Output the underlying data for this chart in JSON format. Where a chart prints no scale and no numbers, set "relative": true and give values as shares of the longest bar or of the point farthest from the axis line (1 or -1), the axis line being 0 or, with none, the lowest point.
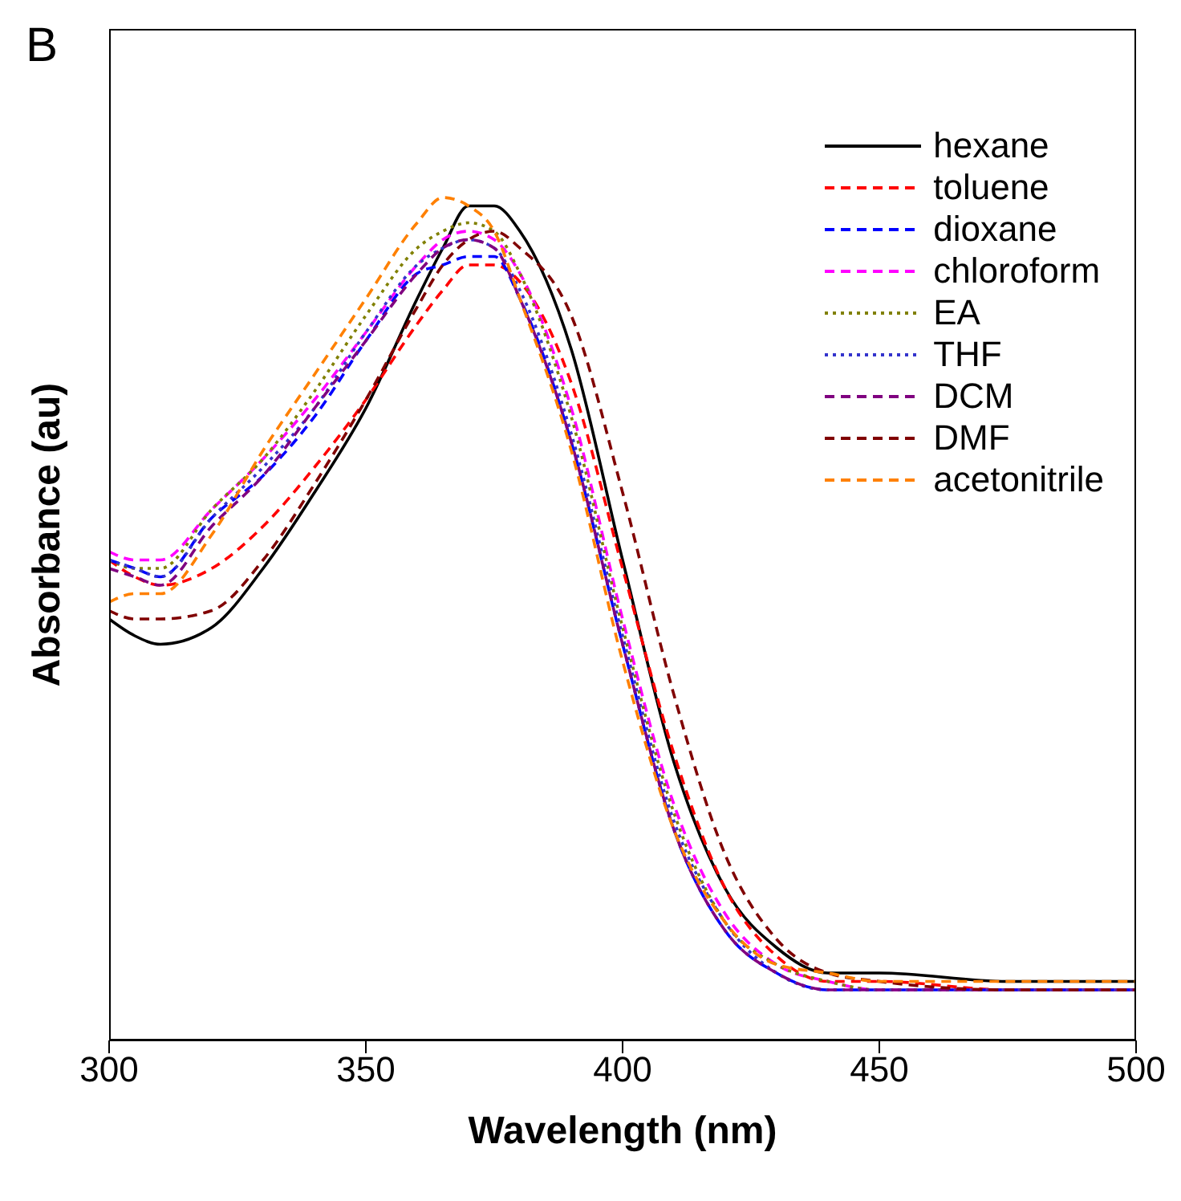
{
  "chart_data": {
    "type": "line",
    "relative": true,
    "xlabel": "Wavelength (nm)",
    "ylabel": "Absorbance (au)",
    "annotations": [
      "B"
    ],
    "x": [
      300,
      305,
      310,
      320,
      330,
      340,
      350,
      360,
      365,
      370,
      375,
      380,
      390,
      400,
      410,
      420,
      430,
      440,
      450,
      475,
      500
    ],
    "xlim": [
      300,
      500
    ],
    "xticks": [
      300,
      350,
      400,
      450,
      500
    ],
    "grid": false,
    "legend": "top right",
    "marker": "none",
    "series": [
      {
        "name": "hexane",
        "color": "#000000",
        "line_style": "solid",
        "values": [
          0.5,
          0.48,
          0.47,
          0.49,
          0.56,
          0.65,
          0.75,
          0.88,
          0.94,
          0.99,
          0.99,
          0.96,
          0.82,
          0.57,
          0.33,
          0.18,
          0.11,
          0.08,
          0.08,
          0.07,
          0.07
        ]
      },
      {
        "name": "toluene",
        "color": "#ff0000",
        "line_style": "dashed",
        "values": [
          0.57,
          0.55,
          0.54,
          0.56,
          0.61,
          0.68,
          0.76,
          0.85,
          0.89,
          0.92,
          0.92,
          0.9,
          0.78,
          0.56,
          0.34,
          0.18,
          0.1,
          0.07,
          0.07,
          0.06,
          0.06
        ]
      },
      {
        "name": "dioxane",
        "color": "#0000ff",
        "line_style": "dashed",
        "values": [
          0.57,
          0.56,
          0.55,
          0.62,
          0.67,
          0.74,
          0.83,
          0.91,
          0.92,
          0.93,
          0.93,
          0.88,
          0.71,
          0.47,
          0.25,
          0.13,
          0.08,
          0.06,
          0.06,
          0.06,
          0.06
        ]
      },
      {
        "name": "chloroform",
        "color": "#ff00ff",
        "line_style": "dashed",
        "values": [
          0.58,
          0.57,
          0.57,
          0.63,
          0.69,
          0.76,
          0.84,
          0.92,
          0.95,
          0.96,
          0.95,
          0.91,
          0.75,
          0.5,
          0.28,
          0.15,
          0.09,
          0.07,
          0.06,
          0.06,
          0.06
        ]
      },
      {
        "name": "EA",
        "color": "#808000",
        "line_style": "dotted",
        "values": [
          0.57,
          0.56,
          0.56,
          0.63,
          0.69,
          0.77,
          0.86,
          0.94,
          0.96,
          0.97,
          0.96,
          0.91,
          0.74,
          0.49,
          0.27,
          0.14,
          0.09,
          0.07,
          0.06,
          0.06,
          0.06
        ]
      },
      {
        "name": "THF",
        "color": "#3333cc",
        "line_style": "dotted",
        "values": [
          0.57,
          0.56,
          0.55,
          0.62,
          0.68,
          0.75,
          0.84,
          0.92,
          0.94,
          0.95,
          0.94,
          0.89,
          0.72,
          0.48,
          0.26,
          0.14,
          0.08,
          0.06,
          0.06,
          0.06,
          0.06
        ]
      },
      {
        "name": "DCM",
        "color": "#800080",
        "line_style": "dashed",
        "values": [
          0.56,
          0.55,
          0.54,
          0.61,
          0.67,
          0.75,
          0.83,
          0.91,
          0.94,
          0.95,
          0.94,
          0.88,
          0.71,
          0.47,
          0.25,
          0.13,
          0.08,
          0.06,
          0.06,
          0.06,
          0.06
        ]
      },
      {
        "name": "DMF",
        "color": "#800000",
        "line_style": "dashed",
        "values": [
          0.51,
          0.5,
          0.5,
          0.51,
          0.57,
          0.66,
          0.76,
          0.87,
          0.92,
          0.95,
          0.96,
          0.94,
          0.86,
          0.65,
          0.41,
          0.22,
          0.12,
          0.08,
          0.07,
          0.06,
          0.06
        ]
      },
      {
        "name": "acetonitrile",
        "color": "#ff8000",
        "line_style": "dashed",
        "values": [
          0.52,
          0.53,
          0.53,
          0.6,
          0.7,
          0.79,
          0.88,
          0.97,
          1.0,
          0.99,
          0.96,
          0.88,
          0.7,
          0.45,
          0.25,
          0.14,
          0.09,
          0.08,
          0.07,
          0.07,
          0.07
        ]
      }
    ]
  }
}
